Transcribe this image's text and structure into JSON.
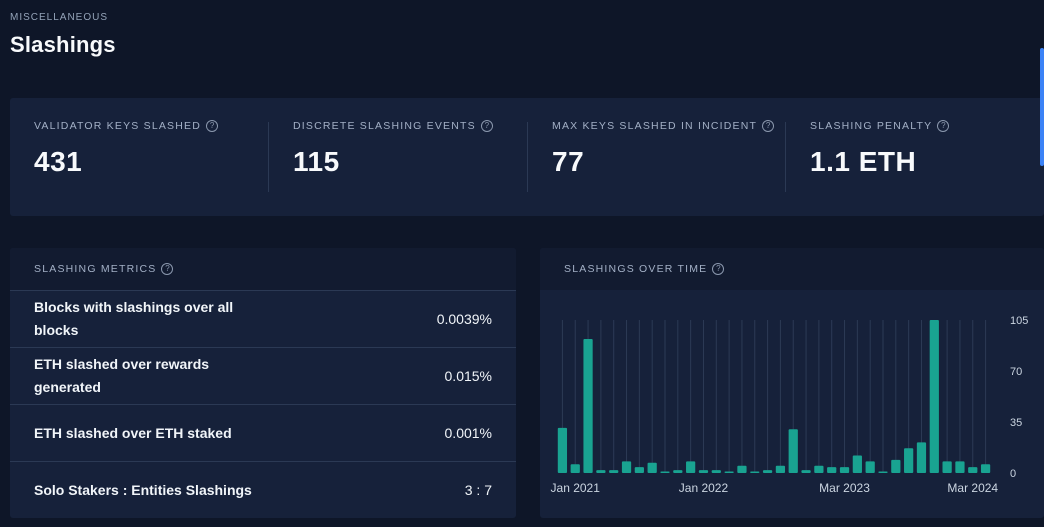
{
  "header": {
    "eyebrow": "MISCELLANEOUS",
    "title": "Slashings"
  },
  "stats": [
    {
      "label": "VALIDATOR KEYS SLASHED",
      "value": "431"
    },
    {
      "label": "DISCRETE SLASHING EVENTS",
      "value": "115"
    },
    {
      "label": "MAX KEYS SLASHED IN INCIDENT",
      "value": "77"
    },
    {
      "label": "SLASHING PENALTY",
      "value": "1.1 ETH"
    }
  ],
  "metrics": {
    "title": "SLASHING METRICS",
    "rows": [
      {
        "label": "Blocks with slashings over all blocks",
        "value": "0.0039%"
      },
      {
        "label": "ETH slashed over rewards generated",
        "value": "0.015%"
      },
      {
        "label": "ETH slashed over ETH staked",
        "value": "0.001%"
      },
      {
        "label": "Solo Stakers : Entities Slashings",
        "value": "3 : 7"
      }
    ]
  },
  "chart": {
    "title": "SLASHINGS OVER TIME",
    "help_icon": "question-circle-icon"
  },
  "colors": {
    "background": "#0e1628",
    "panel": "#16213a",
    "bar": "#19a391",
    "scroll_accent": "#3b82f6"
  },
  "chart_data": {
    "type": "bar",
    "x_tick_labels": [
      "Jan 2021",
      "Jan 2022",
      "Mar 2023",
      "Mar 2024"
    ],
    "x_tick_indices": [
      1,
      11,
      22,
      32
    ],
    "y_ticks": [
      0,
      35,
      70,
      105
    ],
    "ylim": [
      0,
      105
    ],
    "grid": "vertical",
    "values": [
      31,
      6,
      92,
      2,
      2,
      8,
      4,
      7,
      1,
      2,
      8,
      2,
      2,
      1,
      5,
      1,
      2,
      5,
      30,
      2,
      5,
      4,
      4,
      12,
      8,
      1,
      9,
      17,
      21,
      105,
      8,
      8,
      4,
      6
    ]
  }
}
